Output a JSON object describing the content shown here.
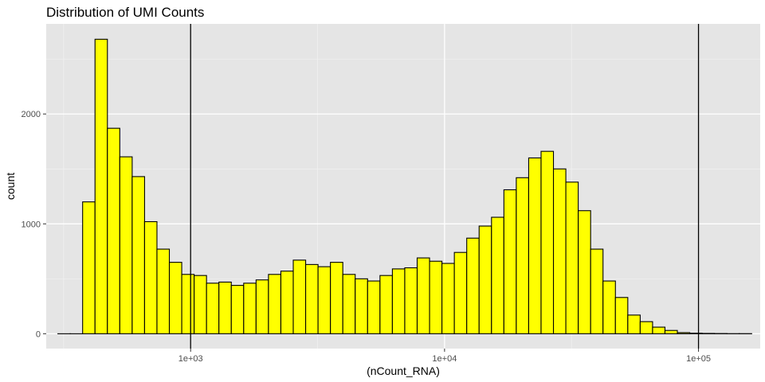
{
  "chart_data": {
    "type": "bar",
    "title": "Distribution of UMI Counts",
    "xlabel": "(nCount_RNA)",
    "ylabel": "count",
    "x_scale": "log10",
    "xlim": [
      270,
      175000
    ],
    "ylim": [
      -135,
      2820
    ],
    "x_ticks": [
      {
        "value": 1000,
        "label": "1e+03"
      },
      {
        "value": 10000,
        "label": "1e+04"
      },
      {
        "value": 100000,
        "label": "1e+05"
      }
    ],
    "y_ticks": [
      {
        "value": 0,
        "label": "0"
      },
      {
        "value": 1000,
        "label": "1000"
      },
      {
        "value": 2000,
        "label": "2000"
      }
    ],
    "bin_range": [
      300,
      162000
    ],
    "bin_counts": [
      0,
      0,
      1200,
      2680,
      1870,
      1610,
      1430,
      1020,
      770,
      650,
      540,
      530,
      460,
      470,
      440,
      460,
      490,
      540,
      570,
      670,
      630,
      610,
      650,
      540,
      500,
      480,
      530,
      590,
      600,
      690,
      660,
      640,
      740,
      870,
      980,
      1060,
      1310,
      1420,
      1600,
      1660,
      1500,
      1380,
      1120,
      770,
      480,
      330,
      170,
      110,
      60,
      30,
      10,
      5,
      3,
      2,
      1,
      1
    ],
    "vlines": [
      1000,
      100000
    ],
    "bar_fill": "#ffff00",
    "bar_stroke": "#000000",
    "panel_bg": "#e5e5e5",
    "grid": true,
    "legend": "none"
  }
}
